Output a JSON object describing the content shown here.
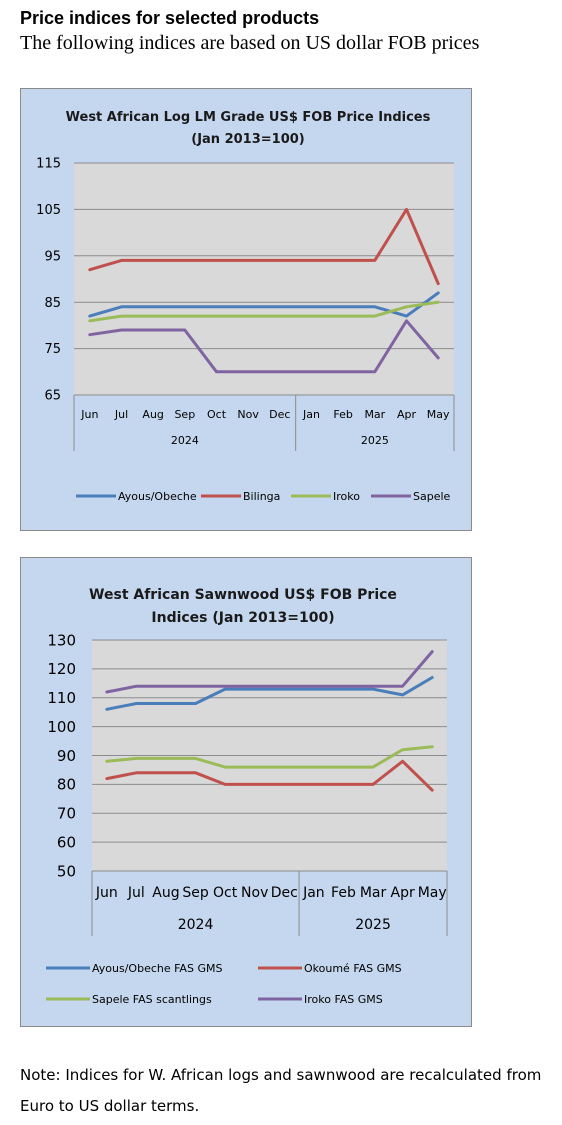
{
  "page": {
    "heading": "Price indices for selected products",
    "subheading": "The following indices are based on US dollar FOB prices",
    "note": "Note: Indices for W. African logs and sawnwood are recalculated from Euro to US dollar terms."
  },
  "chart_data": [
    {
      "type": "line",
      "title_lines": [
        "West African Log LM Grade US$ FOB Price Indices",
        "(Jan 2013=100)"
      ],
      "categories": [
        "Jun",
        "Jul",
        "Aug",
        "Sep",
        "Oct",
        "Nov",
        "Dec",
        "Jan",
        "Feb",
        "Mar",
        "Apr",
        "May"
      ],
      "year_groups": [
        {
          "label": "2024",
          "start": 0,
          "end": 6
        },
        {
          "label": "2025",
          "start": 7,
          "end": 11
        }
      ],
      "ylim": [
        65,
        115
      ],
      "yticks": [
        65,
        75,
        85,
        95,
        105,
        115
      ],
      "grid": true,
      "legend_position": "bottom",
      "series": [
        {
          "name": "Ayous/Obeche",
          "color": "#4a7ebb",
          "values": [
            82,
            84,
            84,
            84,
            84,
            84,
            84,
            84,
            84,
            84,
            82,
            87
          ]
        },
        {
          "name": "Bilinga",
          "color": "#c0504d",
          "values": [
            92,
            94,
            94,
            94,
            94,
            94,
            94,
            94,
            94,
            94,
            105,
            89
          ]
        },
        {
          "name": "Iroko",
          "color": "#9bbb59",
          "values": [
            81,
            82,
            82,
            82,
            82,
            82,
            82,
            82,
            82,
            82,
            84,
            85
          ]
        },
        {
          "name": "Sapele",
          "color": "#8064a2",
          "values": [
            78,
            79,
            79,
            79,
            70,
            70,
            70,
            70,
            70,
            70,
            81,
            73
          ]
        }
      ]
    },
    {
      "type": "line",
      "title_lines": [
        "West African Sawnwood US$ FOB Price",
        "Indices (Jan 2013=100)"
      ],
      "categories": [
        "Jun",
        "Jul",
        "Aug",
        "Sep",
        "Oct",
        "Nov",
        "Dec",
        "Jan",
        "Feb",
        "Mar",
        "Apr",
        "May"
      ],
      "year_groups": [
        {
          "label": "2024",
          "start": 0,
          "end": 6
        },
        {
          "label": "2025",
          "start": 7,
          "end": 11
        }
      ],
      "ylim": [
        50,
        130
      ],
      "yticks": [
        50,
        60,
        70,
        80,
        90,
        100,
        110,
        120,
        130
      ],
      "grid": true,
      "legend_position": "bottom",
      "series": [
        {
          "name": "Ayous/Obeche  FAS GMS",
          "color": "#4a7ebb",
          "values": [
            106,
            108,
            108,
            108,
            113,
            113,
            113,
            113,
            113,
            113,
            111,
            117
          ]
        },
        {
          "name": "Okoumé  FAS GMS",
          "color": "#c0504d",
          "values": [
            82,
            84,
            84,
            84,
            80,
            80,
            80,
            80,
            80,
            80,
            88,
            78
          ]
        },
        {
          "name": "Sapele  FAS scantlings",
          "color": "#9bbb59",
          "values": [
            88,
            89,
            89,
            89,
            86,
            86,
            86,
            86,
            86,
            86,
            92,
            93
          ]
        },
        {
          "name": "Iroko FAS GMS",
          "color": "#8064a2",
          "values": [
            112,
            114,
            114,
            114,
            114,
            114,
            114,
            114,
            114,
            114,
            114,
            126
          ]
        }
      ]
    }
  ]
}
